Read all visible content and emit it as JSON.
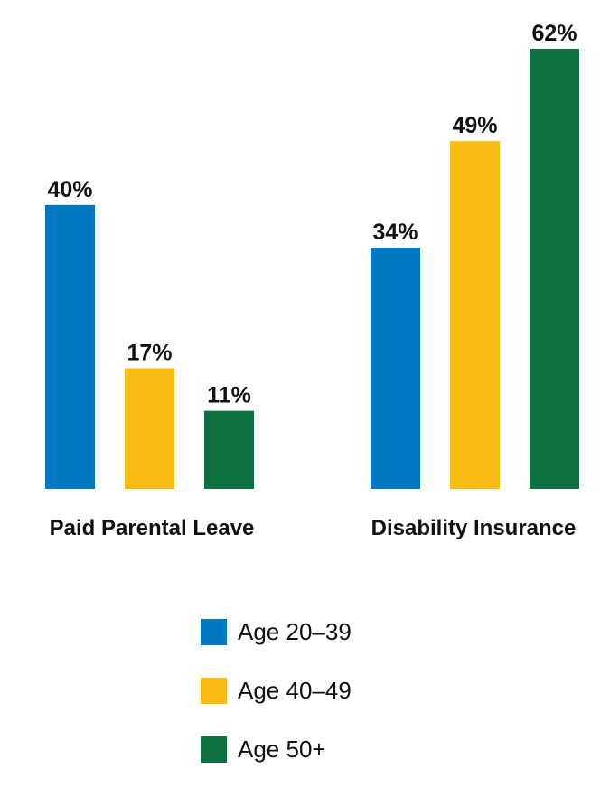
{
  "chart_data": {
    "type": "bar",
    "title": "",
    "xlabel": "",
    "ylabel": "",
    "ylim": [
      0,
      62
    ],
    "grid": false,
    "legend_position": "bottom",
    "categories": [
      "Paid Parental Leave",
      "Disability Insurance"
    ],
    "series": [
      {
        "name": "Age 20–39",
        "color": "#0079C1",
        "values": [
          40,
          34
        ],
        "labels": [
          "40%",
          "34%"
        ]
      },
      {
        "name": "Age 40–49",
        "color": "#F9BC15",
        "values": [
          17,
          49
        ],
        "labels": [
          "17%",
          "49%"
        ]
      },
      {
        "name": "Age 50+",
        "color": "#0E7240",
        "values": [
          11,
          62
        ],
        "labels": [
          "11%",
          "62%"
        ]
      }
    ]
  }
}
